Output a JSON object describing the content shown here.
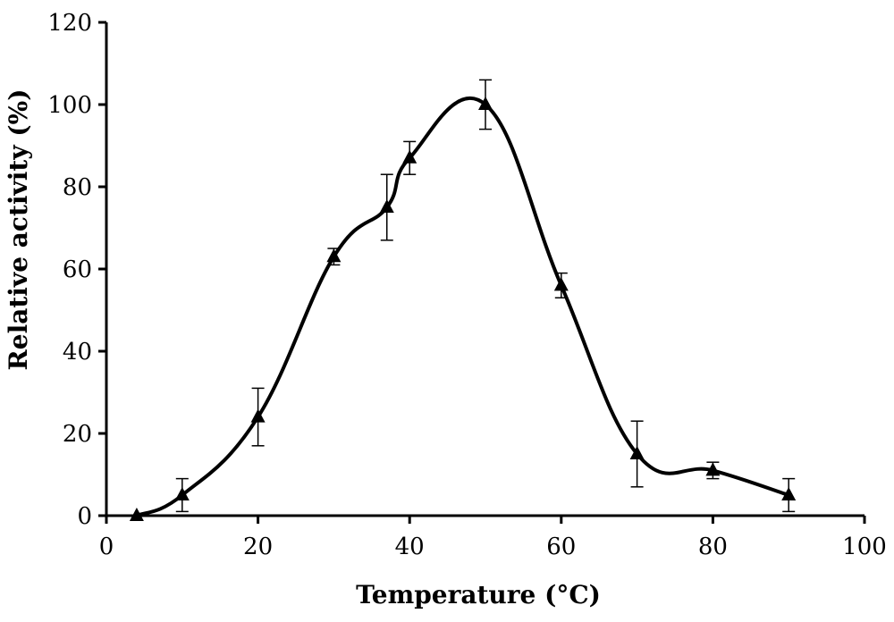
{
  "chart_data": {
    "type": "line",
    "title": "",
    "xlabel": "Temperature (°C)",
    "ylabel": "Relative activity (%)",
    "xlim": [
      0,
      100
    ],
    "ylim": [
      0,
      120
    ],
    "xticks": [
      "0",
      "20",
      "40",
      "60",
      "80",
      "100"
    ],
    "yticks": [
      "0",
      "20",
      "40",
      "60",
      "80",
      "100",
      "120"
    ],
    "grid": false,
    "legend": "none",
    "line_color": "#000000",
    "marker": "triangle",
    "series": [
      {
        "x": [
          4,
          10,
          20,
          30,
          37,
          40,
          50,
          60,
          70,
          80,
          90
        ],
        "y": [
          0,
          5,
          24,
          63,
          75,
          87,
          100,
          56,
          15,
          11,
          5
        ],
        "error": [
          0,
          4,
          7,
          2,
          8,
          4,
          6,
          3,
          8,
          2,
          4
        ]
      }
    ]
  }
}
